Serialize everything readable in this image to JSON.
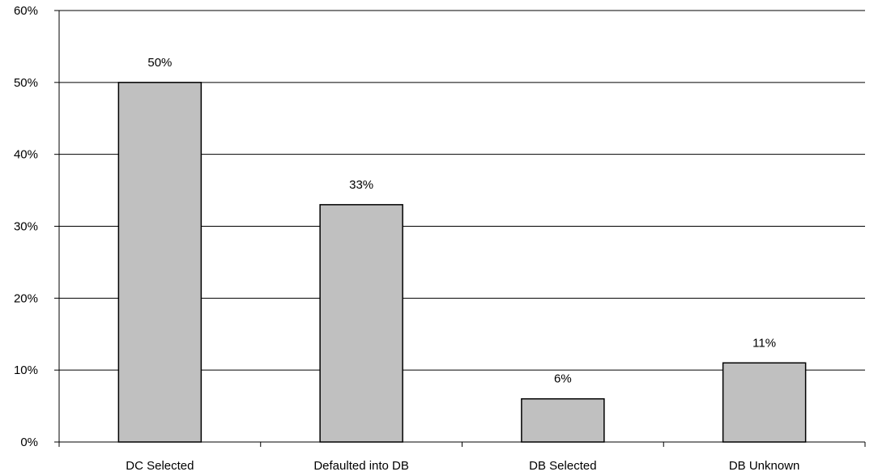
{
  "chart_data": {
    "type": "bar",
    "categories": [
      "DC Selected",
      "Defaulted into DB",
      "DB Selected",
      "DB Unknown"
    ],
    "values": [
      50,
      33,
      6,
      11
    ],
    "data_labels": [
      "50%",
      "33%",
      "6%",
      "11%"
    ],
    "title": "",
    "xlabel": "",
    "ylabel": "",
    "ylim": [
      0,
      60
    ],
    "y_ticks": [
      0,
      10,
      20,
      30,
      40,
      50,
      60
    ],
    "y_tick_labels": [
      "0%",
      "10%",
      "20%",
      "30%",
      "40%",
      "50%",
      "60%"
    ],
    "grid": true,
    "legend": "none",
    "colors": {
      "bar_fill": "#c0c0c0",
      "bar_stroke": "#000000",
      "grid": "#000000"
    }
  }
}
